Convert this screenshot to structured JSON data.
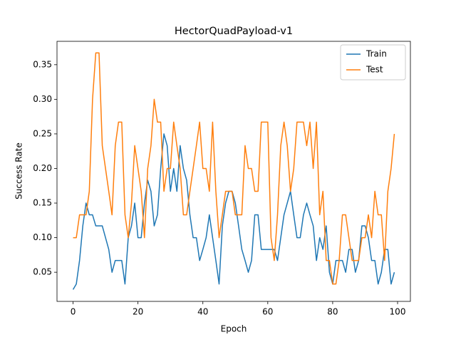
{
  "chart_data": {
    "type": "line",
    "title": "HectorQuadPayload-v1",
    "x_label": "Epoch",
    "y_label": "Success Rate",
    "x": [
      0,
      1,
      2,
      3,
      4,
      5,
      6,
      7,
      8,
      9,
      10,
      11,
      12,
      13,
      14,
      15,
      16,
      17,
      18,
      19,
      20,
      21,
      22,
      23,
      24,
      25,
      26,
      27,
      28,
      29,
      30,
      31,
      32,
      33,
      34,
      35,
      36,
      37,
      38,
      39,
      40,
      41,
      42,
      43,
      44,
      45,
      46,
      47,
      48,
      49,
      50,
      51,
      52,
      53,
      54,
      55,
      56,
      57,
      58,
      59,
      60,
      61,
      62,
      63,
      64,
      65,
      66,
      67,
      68,
      69,
      70,
      71,
      72,
      73,
      74,
      75,
      76,
      77,
      78,
      79,
      80,
      81,
      82,
      83,
      84,
      85,
      86,
      87,
      88,
      89,
      90,
      91,
      92,
      93,
      94,
      95,
      96,
      97,
      98,
      99
    ],
    "series": [
      {
        "name": "Train",
        "color": "#1f77b4",
        "values": [
          0.025,
          0.033,
          0.067,
          0.117,
          0.15,
          0.133,
          0.133,
          0.117,
          0.117,
          0.117,
          0.1,
          0.083,
          0.05,
          0.067,
          0.067,
          0.067,
          0.033,
          0.1,
          0.117,
          0.15,
          0.1,
          0.1,
          0.15,
          0.183,
          0.167,
          0.117,
          0.133,
          0.2,
          0.25,
          0.233,
          0.167,
          0.2,
          0.167,
          0.233,
          0.2,
          0.183,
          0.133,
          0.1,
          0.1,
          0.067,
          0.083,
          0.1,
          0.133,
          0.1,
          0.067,
          0.033,
          0.117,
          0.15,
          0.167,
          0.167,
          0.15,
          0.117,
          0.083,
          0.067,
          0.05,
          0.067,
          0.133,
          0.133,
          0.083,
          0.083,
          0.083,
          0.083,
          0.083,
          0.067,
          0.1,
          0.133,
          0.15,
          0.167,
          0.133,
          0.1,
          0.1,
          0.133,
          0.15,
          0.133,
          0.117,
          0.067,
          0.1,
          0.083,
          0.117,
          0.05,
          0.033,
          0.067,
          0.067,
          0.067,
          0.05,
          0.083,
          0.083,
          0.05,
          0.067,
          0.117,
          0.117,
          0.1,
          0.067,
          0.067,
          0.033,
          0.05,
          0.083,
          0.083,
          0.033,
          0.05
        ]
      },
      {
        "name": "Test",
        "color": "#ff7f0e",
        "values": [
          0.1,
          0.1,
          0.133,
          0.133,
          0.133,
          0.167,
          0.3,
          0.367,
          0.367,
          0.233,
          0.2,
          0.167,
          0.133,
          0.233,
          0.267,
          0.267,
          0.133,
          0.1,
          0.15,
          0.233,
          0.2,
          0.167,
          0.1,
          0.2,
          0.233,
          0.3,
          0.267,
          0.267,
          0.167,
          0.2,
          0.2,
          0.267,
          0.233,
          0.2,
          0.133,
          0.133,
          0.167,
          0.2,
          0.233,
          0.267,
          0.2,
          0.2,
          0.167,
          0.267,
          0.167,
          0.1,
          0.133,
          0.167,
          0.167,
          0.167,
          0.133,
          0.133,
          0.133,
          0.233,
          0.2,
          0.2,
          0.167,
          0.167,
          0.267,
          0.267,
          0.267,
          0.1,
          0.067,
          0.133,
          0.233,
          0.267,
          0.233,
          0.167,
          0.2,
          0.267,
          0.267,
          0.267,
          0.233,
          0.267,
          0.2,
          0.267,
          0.133,
          0.167,
          0.067,
          0.067,
          0.033,
          0.033,
          0.067,
          0.133,
          0.133,
          0.1,
          0.067,
          0.067,
          0.067,
          0.1,
          0.1,
          0.133,
          0.1,
          0.167,
          0.133,
          0.133,
          0.067,
          0.167,
          0.2,
          0.25
        ]
      }
    ],
    "xlim": [
      -4.95,
      103.95
    ],
    "xticks": [
      0,
      20,
      40,
      60,
      80,
      100
    ],
    "ylim": [
      0.0079,
      0.3838
    ],
    "yticks": [
      0.05,
      {
        "value": 0.1,
        "label": "0.10"
      },
      0.15,
      {
        "value": 0.2,
        "label": "0.20"
      },
      0.25,
      {
        "value": 0.3,
        "label": "0.30"
      },
      0.35
    ],
    "grid": false,
    "legend": "upper right"
  }
}
